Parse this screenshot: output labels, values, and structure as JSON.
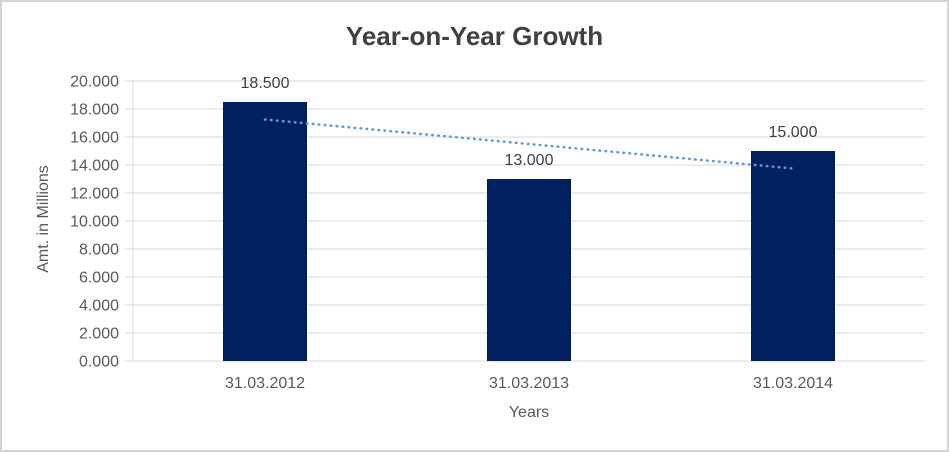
{
  "chart_data": {
    "type": "bar",
    "title": "Year-on-Year Growth",
    "xlabel": "Years",
    "ylabel": "Amt. in Millions",
    "categories": [
      "31.03.2012",
      "31.03.2013",
      "31.03.2014"
    ],
    "values": [
      18.5,
      13.0,
      15.0
    ],
    "data_labels": [
      "18.500",
      "13.000",
      "15.000"
    ],
    "ylim": [
      0,
      20
    ],
    "ytick_step": 2,
    "ytick_labels": [
      "0.000",
      "2.000",
      "4.000",
      "6.000",
      "8.000",
      "10.000",
      "12.000",
      "14.000",
      "16.000",
      "18.000",
      "20.000"
    ],
    "grid": "horizontal",
    "legend": "none",
    "trendline": {
      "type": "linear",
      "style": "dotted",
      "start_value": 17.25,
      "end_value": 13.75
    },
    "colors": {
      "bar": "#002060",
      "trendline": "#5B9BD5",
      "gridline": "#D9D9D9",
      "axis_line": "#D9D9D9",
      "title_text": "#404040",
      "label_text": "#595959",
      "data_label_text": "#404040"
    }
  }
}
